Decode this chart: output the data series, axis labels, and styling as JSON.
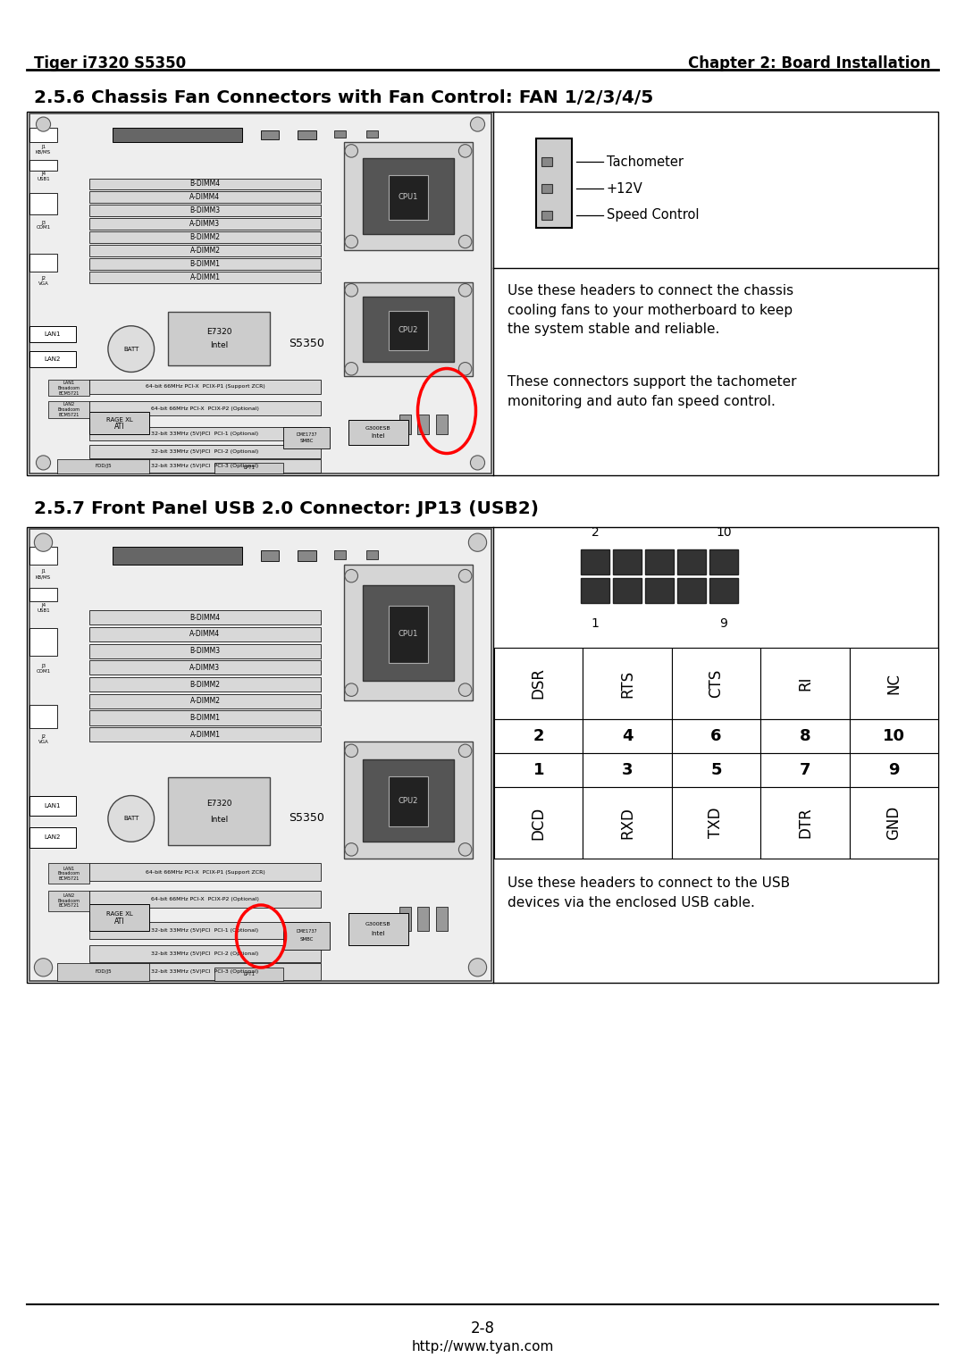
{
  "page_bg": "#ffffff",
  "header_left": "Tiger i7320 S5350",
  "header_right": "Chapter 2: Board Installation",
  "section1_title": "2.5.6 Chassis Fan Connectors with Fan Control: FAN 1/2/3/4/5",
  "section2_title": "2.5.7 Front Panel USB 2.0 Connector: JP13 (USB2)",
  "footer_line": "2-8",
  "footer_url": "http://www.tyan.com",
  "fan_connector_labels": [
    "Speed Control",
    "+12V",
    "Tachometer"
  ],
  "fan_text1": "Use these headers to connect the chassis\ncooling fans to your motherboard to keep\nthe system stable and reliable.",
  "fan_text2": "These connectors support the tachometer\nmonitoring and auto fan speed control.",
  "usb_text": "Use these headers to connect to the USB\ndevices via the enclosed USB cable.",
  "usb_col_labels_top": [
    "DSR",
    "RTS",
    "CTS",
    "RI",
    "NC"
  ],
  "usb_col_labels_bot": [
    "DCD",
    "RXD",
    "TXD",
    "DTR",
    "GND"
  ],
  "usb_row_even": [
    "2",
    "4",
    "6",
    "8",
    "10"
  ],
  "usb_row_odd": [
    "1",
    "3",
    "5",
    "7",
    "9"
  ],
  "usb_pin_label_2": "2",
  "usb_pin_label_10": "10",
  "usb_pin_label_1": "1",
  "usb_pin_label_9": "9",
  "mb_bg": "#f5f5f5",
  "mb_border": "#555555"
}
